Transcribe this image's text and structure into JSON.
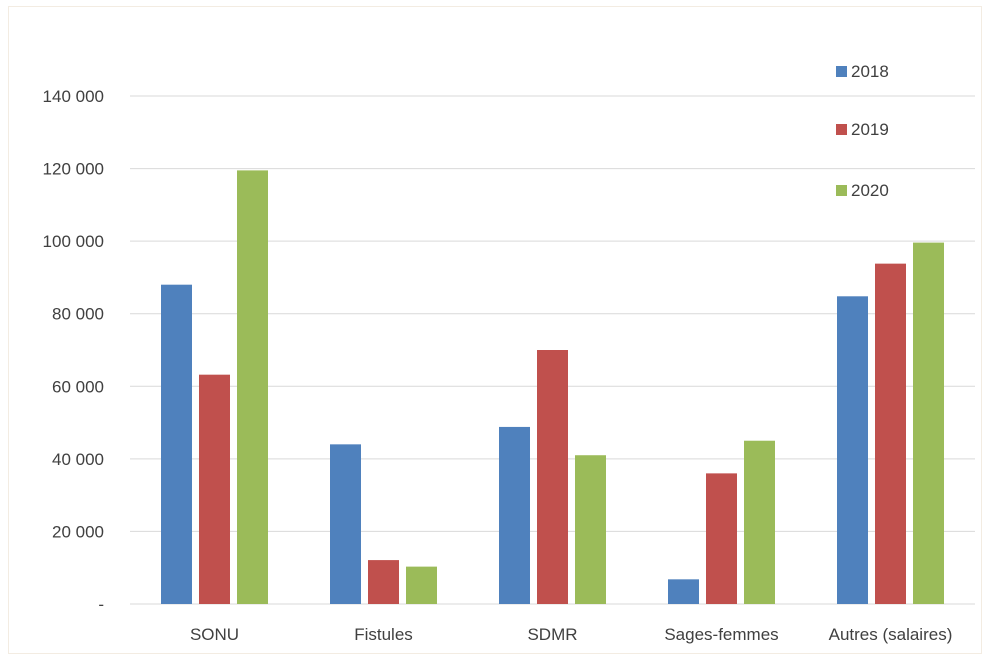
{
  "chart_data": {
    "type": "bar",
    "title": "",
    "xlabel": "",
    "ylabel": "",
    "categories": [
      "SONU",
      "Fistules",
      "SDMR",
      "Sages-femmes",
      "Autres (salaires)"
    ],
    "series": [
      {
        "name": "2018",
        "color": "#4f81bd",
        "values": [
          88000,
          44000,
          48800,
          6800,
          84800
        ]
      },
      {
        "name": "2019",
        "color": "#c0504d",
        "values": [
          63200,
          12100,
          70000,
          36000,
          93800
        ]
      },
      {
        "name": "2020",
        "color": "#9bbb59",
        "values": [
          119500,
          10300,
          41000,
          45000,
          99600
        ]
      }
    ],
    "ylim": [
      0,
      150000
    ],
    "y_ticks": [
      0,
      20000,
      40000,
      60000,
      80000,
      100000,
      120000,
      140000
    ],
    "y_tick_labels": [
      "-",
      "20 000",
      "40 000",
      "60 000",
      "80 000",
      "100 000",
      "120 000",
      "140 000"
    ],
    "grid": true,
    "legend_position": "top-right"
  }
}
